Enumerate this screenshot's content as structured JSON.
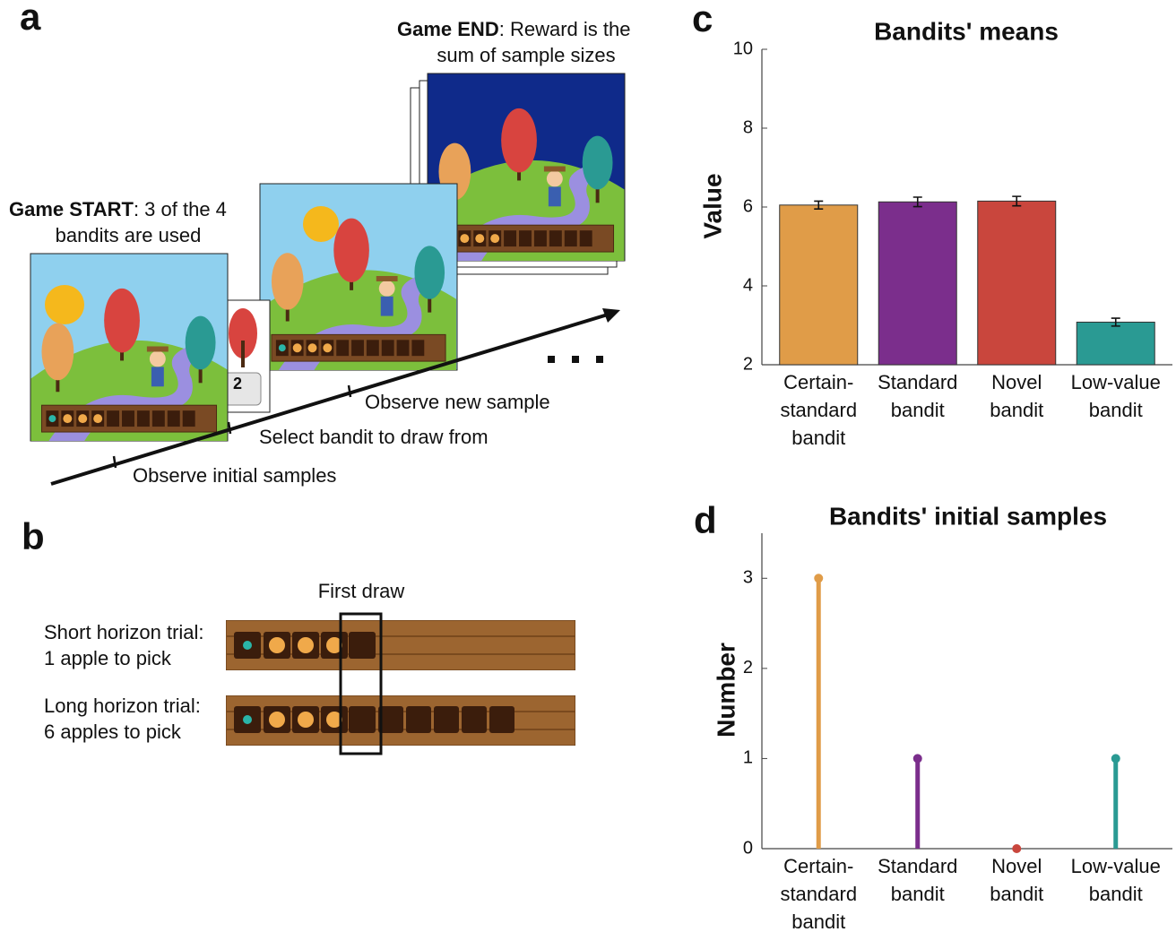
{
  "panel_a": {
    "label": "a",
    "start_bold": "Game START",
    "start_rest": ": 3 of the 4",
    "start_line2": "bandits are used",
    "end_bold": "Game END",
    "end_rest": ": Reward is the",
    "end_line2": "sum of sample sizes",
    "key": "2",
    "steps": [
      "Observe initial samples",
      "Select bandit to draw from",
      "Observe new sample"
    ]
  },
  "panel_b": {
    "label": "b",
    "first_draw": "First draw",
    "short": [
      "Short horizon trial:",
      "1 apple to pick"
    ],
    "long": [
      "Long horizon trial:",
      "6 apples to pick"
    ]
  },
  "chart_data": [
    {
      "panel_label": "c",
      "type": "bar",
      "title": "Bandits' means",
      "y_label": "Value",
      "categories": [
        [
          "Certain-",
          "standard",
          "bandit"
        ],
        [
          "Standard",
          "bandit"
        ],
        [
          "Novel",
          "bandit"
        ],
        [
          "Low-value",
          "bandit"
        ]
      ],
      "values": [
        6.05,
        6.13,
        6.15,
        3.08
      ],
      "errors": [
        0.1,
        0.12,
        0.12,
        0.1
      ],
      "colors": [
        "#e09c48",
        "#7b2e8c",
        "#c9463d",
        "#2a9a93"
      ],
      "ylim": [
        2,
        10
      ],
      "yticks": [
        2,
        4,
        6,
        8,
        10
      ]
    },
    {
      "panel_label": "d",
      "type": "lollipop",
      "title": "Bandits' initial samples",
      "y_label": "Number",
      "categories": [
        [
          "Certain-",
          "standard",
          "bandit"
        ],
        [
          "Standard",
          "bandit"
        ],
        [
          "Novel",
          "bandit"
        ],
        [
          "Low-value",
          "bandit"
        ]
      ],
      "values": [
        3,
        1,
        0,
        1
      ],
      "colors": [
        "#e09c48",
        "#7b2e8c",
        "#c9463d",
        "#2a9a93"
      ],
      "ylim": [
        0,
        3.5
      ],
      "yticks": [
        0,
        1,
        2,
        3
      ]
    }
  ]
}
